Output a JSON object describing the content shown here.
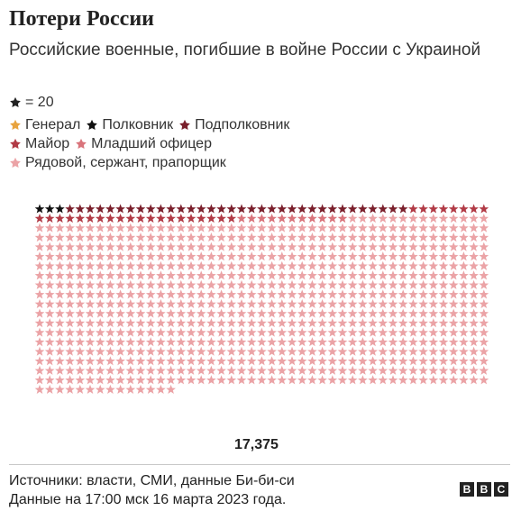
{
  "header": {
    "title": "Потери России",
    "subtitle": "Российские военные, погибшие в войне России с Украиной"
  },
  "scale_legend": {
    "icon": "star-icon",
    "label": "= 20",
    "color": "#222222"
  },
  "legend": {
    "items": [
      {
        "label": "Генерал",
        "color": "#e8a33d"
      },
      {
        "label": "Полковник",
        "color": "#111111"
      },
      {
        "label": "Подполковник",
        "color": "#7a1f2b"
      },
      {
        "label": "Майор",
        "color": "#b13a45"
      },
      {
        "label": "Младший офицер",
        "color": "#d9747b"
      },
      {
        "label": "Рядовой, сержант, прапорщик",
        "color": "#eba3a6"
      }
    ]
  },
  "total_label": "17,375",
  "footer": {
    "source": "Источники: власти, СМИ, данные Би-би-си",
    "date": "Данные на 17:00 мск 16 марта 2023 года.",
    "logo_letters": [
      "B",
      "B",
      "C"
    ]
  },
  "chart_data": {
    "type": "waffle",
    "unit": "star = 20",
    "total": 17375,
    "categories": [
      "Генерал",
      "Полковник",
      "Подполковник",
      "Майор",
      "Младший офицер",
      "Рядовой, сержант, прапорщик"
    ],
    "series": [
      {
        "name": "Генерал",
        "stars": 0,
        "color": "#e8a33d"
      },
      {
        "name": "Полковник",
        "stars": 3,
        "color": "#111111"
      },
      {
        "name": "Подполковник",
        "stars": 34,
        "color": "#7a1f2b"
      },
      {
        "name": "Майор",
        "stars": 28,
        "color": "#b13a45"
      },
      {
        "name": "Младший офицер",
        "stars": 11,
        "color": "#d9747b"
      },
      {
        "name": "Рядовой, сержант, прапорщик",
        "stars": 793,
        "color": "#eba3a6"
      }
    ]
  }
}
